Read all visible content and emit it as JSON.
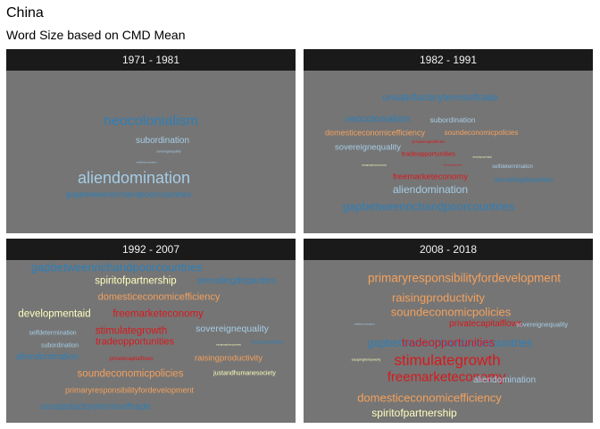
{
  "title": "China",
  "subtitle": "Word Size based on CMD Mean",
  "colors": {
    "blue": "#2c7fb8",
    "lightblue": "#a6cde6",
    "orange": "#f4a15d",
    "red": "#d7191c",
    "cream": "#ffffbf",
    "panel_bg": "#757575",
    "strip_bg": "#1a1a1a"
  },
  "chart_data": {
    "type": "wordcloud",
    "panels": [
      {
        "label": "1971 - 1981",
        "words": [
          {
            "text": "neocolonialism",
            "size": 3.2,
            "color": "blue"
          },
          {
            "text": "subordination",
            "size": 2.0,
            "color": "lightblue"
          },
          {
            "text": "sovereignequality",
            "size": 0.7,
            "color": "lightblue"
          },
          {
            "text": "selfdetermination",
            "size": 0.5,
            "color": "lightblue"
          },
          {
            "text": "aliendomination",
            "size": 3.6,
            "color": "lightblue"
          },
          {
            "text": "gapbetweenrichandpoorcountries",
            "size": 1.9,
            "color": "blue"
          }
        ]
      },
      {
        "label": "1982 - 1991",
        "words": [
          {
            "text": "unsatisfactorytermsoftrade",
            "size": 2.2,
            "color": "blue"
          },
          {
            "text": "neocolonialism",
            "size": 2.2,
            "color": "blue"
          },
          {
            "text": "subordination",
            "size": 1.7,
            "color": "lightblue"
          },
          {
            "text": "domesticeconomicefficiency",
            "size": 1.8,
            "color": "orange"
          },
          {
            "text": "soundeconomicpolicies",
            "size": 1.6,
            "color": "orange"
          },
          {
            "text": "privatecapitalflows",
            "size": 0.9,
            "color": "red"
          },
          {
            "text": "sovereignequality",
            "size": 1.9,
            "color": "lightblue"
          },
          {
            "text": "tradeopportunities",
            "size": 1.5,
            "color": "red"
          },
          {
            "text": "developmentaid",
            "size": 0.6,
            "color": "cream"
          },
          {
            "text": "escapingfrompoverty",
            "size": 0.6,
            "color": "cream"
          },
          {
            "text": "stimulategrowth",
            "size": 0.6,
            "color": "red"
          },
          {
            "text": "selfdetermination",
            "size": 1.2,
            "color": "lightblue"
          },
          {
            "text": "freemarketeconomy",
            "size": 1.9,
            "color": "red"
          },
          {
            "text": "prevailingdisparities",
            "size": 1.5,
            "color": "blue"
          },
          {
            "text": "aliendomination",
            "size": 2.4,
            "color": "lightblue"
          },
          {
            "text": "gapbetweenrichandpoorcountries",
            "size": 2.6,
            "color": "blue"
          }
        ]
      },
      {
        "label": "1992 - 2007",
        "words": [
          {
            "text": "gapbetweenrichandpoorcountries",
            "size": 2.6,
            "color": "blue"
          },
          {
            "text": "spiritofpartnership",
            "size": 2.3,
            "color": "cream"
          },
          {
            "text": "prevailingdisparities",
            "size": 2.0,
            "color": "blue"
          },
          {
            "text": "domesticeconomicefficiency",
            "size": 2.2,
            "color": "orange"
          },
          {
            "text": "developmentaid",
            "size": 2.3,
            "color": "cream"
          },
          {
            "text": "freemarketeconomy",
            "size": 2.3,
            "color": "red"
          },
          {
            "text": "selfdetermination",
            "size": 1.4,
            "color": "lightblue"
          },
          {
            "text": "stimulategrowth",
            "size": 2.3,
            "color": "red"
          },
          {
            "text": "sovereignequality",
            "size": 2.1,
            "color": "lightblue"
          },
          {
            "text": "subordination",
            "size": 1.4,
            "color": "lightblue"
          },
          {
            "text": "tradeopportunities",
            "size": 2.2,
            "color": "red"
          },
          {
            "text": "escapingfrompoverty",
            "size": 0.5,
            "color": "cream"
          },
          {
            "text": "neocolonialism",
            "size": 1.1,
            "color": "blue"
          },
          {
            "text": "aliendomination",
            "size": 2.0,
            "color": "blue"
          },
          {
            "text": "privatecapitalflows",
            "size": 1.2,
            "color": "red"
          },
          {
            "text": "raisingproductivity",
            "size": 1.9,
            "color": "orange"
          },
          {
            "text": "soundeconomicpolicies",
            "size": 2.3,
            "color": "orange"
          },
          {
            "text": "justandhumanesociety",
            "size": 1.4,
            "color": "cream"
          },
          {
            "text": "primaryresponsibilityfordevelopment",
            "size": 1.8,
            "color": "orange"
          },
          {
            "text": "unsatisfactorytermsoftrade",
            "size": 2.1,
            "color": "blue"
          }
        ]
      },
      {
        "label": "2008 - 2018",
        "words": [
          {
            "text": "primaryresponsibilityfordevelopment",
            "size": 2.7,
            "color": "orange"
          },
          {
            "text": "raisingproductivity",
            "size": 2.6,
            "color": "orange"
          },
          {
            "text": "soundeconomicpolicies",
            "size": 2.6,
            "color": "orange"
          },
          {
            "text": "selfdetermination",
            "size": 0.5,
            "color": "lightblue"
          },
          {
            "text": "privatecapitalflows",
            "size": 2.0,
            "color": "red"
          },
          {
            "text": "sovereignequality",
            "size": 1.5,
            "color": "lightblue"
          },
          {
            "text": "gapbetweenrichandpoorcountries",
            "size": 2.5,
            "color": "blue"
          },
          {
            "text": "tradeopportunities",
            "size": 2.6,
            "color": "red"
          },
          {
            "text": "escapingfrompoverty",
            "size": 0.7,
            "color": "cream"
          },
          {
            "text": "stimulategrowth",
            "size": 3.4,
            "color": "red"
          },
          {
            "text": "freemarketeconomy",
            "size": 3.0,
            "color": "red"
          },
          {
            "text": "aliendomination",
            "size": 2.0,
            "color": "lightblue"
          },
          {
            "text": "domesticeconomicefficiency",
            "size": 2.6,
            "color": "orange"
          },
          {
            "text": "spiritofpartnership",
            "size": 2.4,
            "color": "cream"
          }
        ]
      }
    ]
  }
}
